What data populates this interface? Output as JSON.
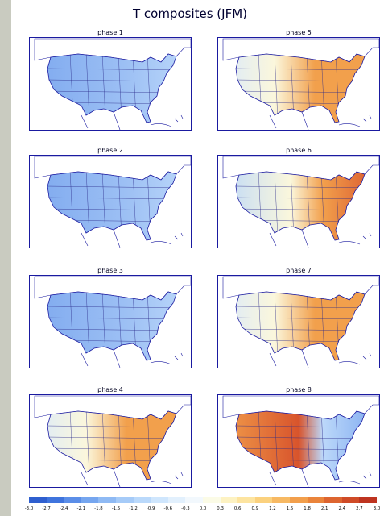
{
  "title": "T composites (JFM)",
  "panels": [
    {
      "label": "phase 1",
      "pattern": "cool",
      "base_anomaly": -0.9
    },
    {
      "label": "phase 5",
      "pattern": "warm-east",
      "base_anomaly": 1.5
    },
    {
      "label": "phase 2",
      "pattern": "cool",
      "base_anomaly": -1.5
    },
    {
      "label": "phase 6",
      "pattern": "hot-east",
      "base_anomaly": 2.4
    },
    {
      "label": "phase 3",
      "pattern": "cool",
      "base_anomaly": -0.9
    },
    {
      "label": "phase 7",
      "pattern": "warm-east",
      "base_anomaly": 0.6
    },
    {
      "label": "phase 4",
      "pattern": "warm-east",
      "base_anomaly": 1.8
    },
    {
      "label": "phase 8",
      "pattern": "warm-north",
      "base_anomaly": 2.1
    }
  ],
  "colorbar": {
    "ticks": [
      "-3.0",
      "-2.7",
      "-2.4",
      "-2.1",
      "-1.8",
      "-1.5",
      "-1.2",
      "-0.9",
      "-0.6",
      "-0.3",
      "0.0",
      "0.3",
      "0.6",
      "0.9",
      "1.2",
      "1.5",
      "1.8",
      "2.1",
      "2.4",
      "2.7",
      "3.0"
    ],
    "colors": [
      "#2f5fcf",
      "#3f74dd",
      "#5b8ee8",
      "#76a6ef",
      "#8fbaf4",
      "#a6cbf8",
      "#bad9fb",
      "#cfe6fd",
      "#e2f0fd",
      "#f2f8fd",
      "#fbfbe6",
      "#fdf2c2",
      "#fde4a0",
      "#fbd17e",
      "#f7b963",
      "#f29f4c",
      "#ea843b",
      "#dd6530",
      "#cf4b27",
      "#be3420"
    ]
  },
  "legend_colors": {
    "cool": "#7ea9ef",
    "neutral": "#fbf7dc",
    "warm": "#f2a04c",
    "hot": "#d8542c",
    "outline": "#1a1aa0"
  }
}
